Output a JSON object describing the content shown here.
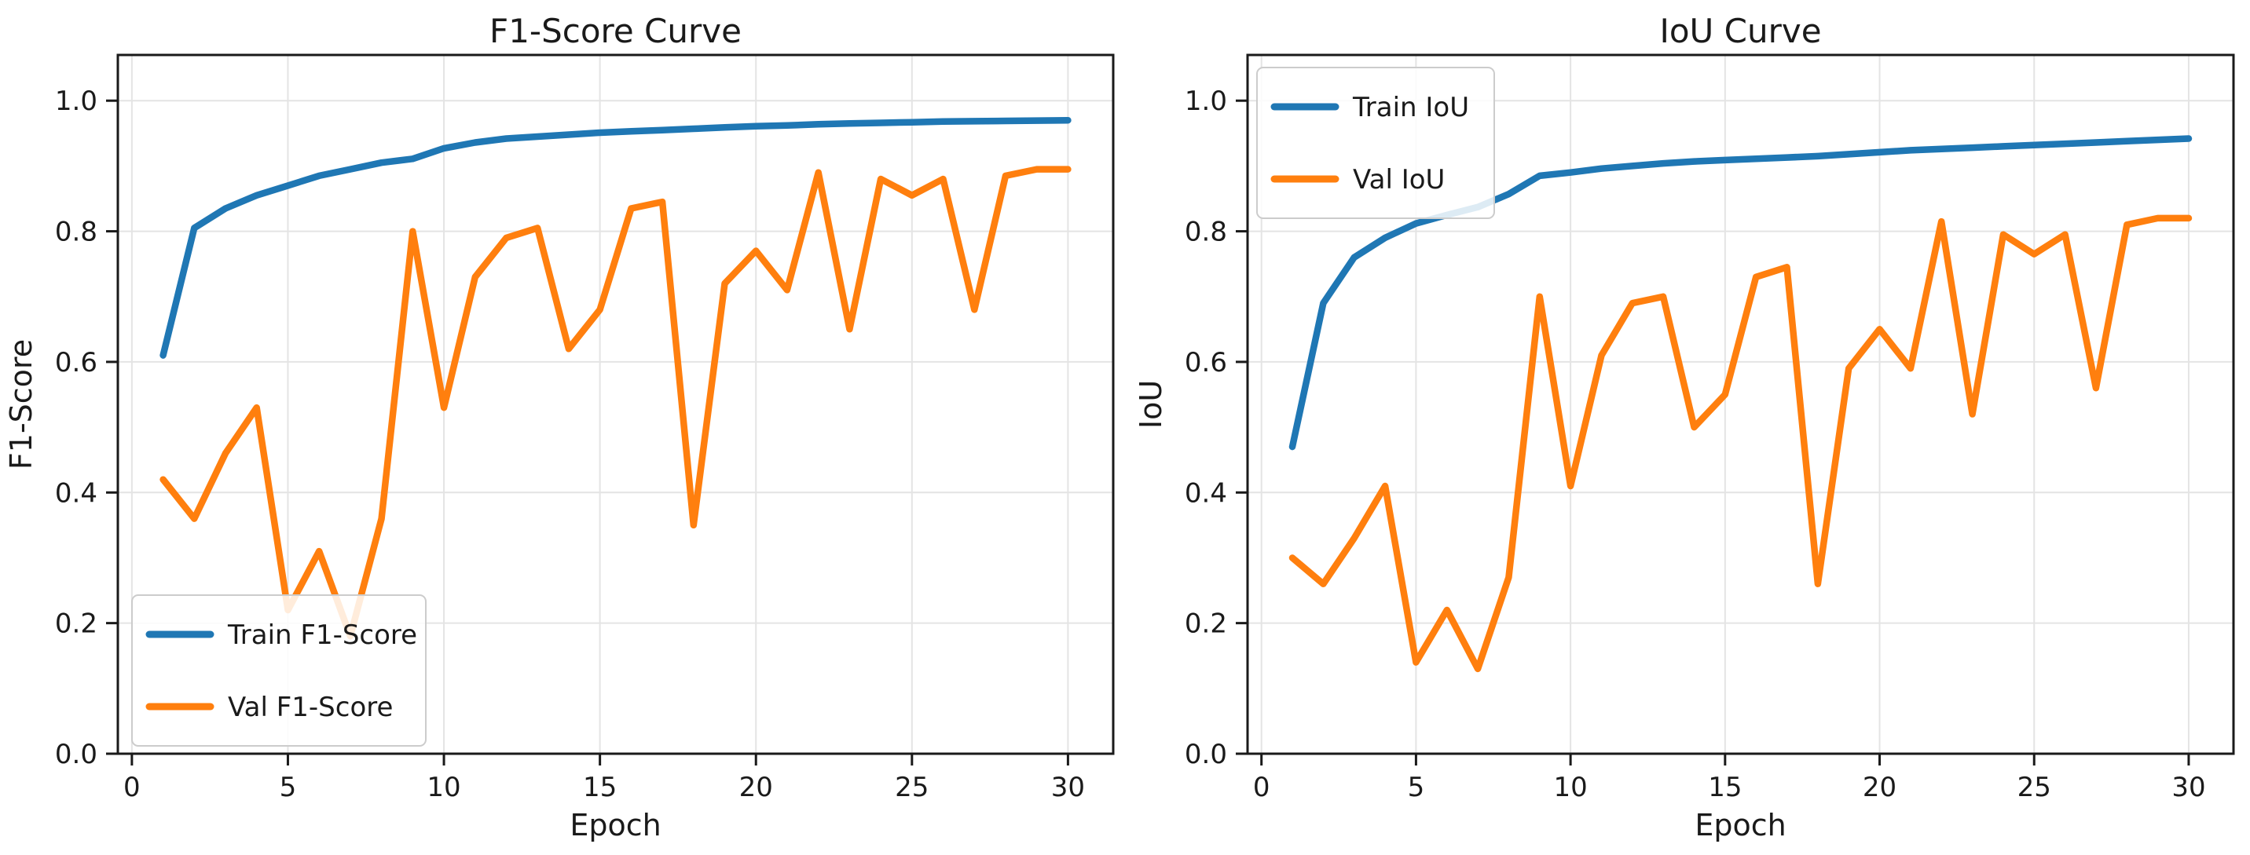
{
  "page": {
    "background": "#ffffff",
    "text_color": "#1a1a1a",
    "grid_color": "#e4e4e4",
    "spine_color": "#1a1a1a",
    "legend_border_color": "#cccccc"
  },
  "chart_data": [
    {
      "type": "line",
      "title": "F1-Score Curve",
      "xlabel": "Epoch",
      "ylabel": "F1-Score",
      "x": [
        1,
        2,
        3,
        4,
        5,
        6,
        7,
        8,
        9,
        10,
        11,
        12,
        13,
        14,
        15,
        16,
        17,
        18,
        19,
        20,
        21,
        22,
        23,
        24,
        25,
        26,
        27,
        28,
        29,
        30
      ],
      "series": [
        {
          "name": "Train F1-Score",
          "color": "#1f77b4",
          "values": [
            0.61,
            0.805,
            0.835,
            0.855,
            0.87,
            0.885,
            0.895,
            0.905,
            0.911,
            0.927,
            0.936,
            0.942,
            0.945,
            0.948,
            0.951,
            0.953,
            0.955,
            0.957,
            0.959,
            0.961,
            0.962,
            0.964,
            0.965,
            0.966,
            0.967,
            0.968,
            0.9685,
            0.969,
            0.9695,
            0.97
          ]
        },
        {
          "name": "Val F1-Score",
          "color": "#ff7f0e",
          "values": [
            0.42,
            0.36,
            0.46,
            0.53,
            0.22,
            0.31,
            0.18,
            0.36,
            0.8,
            0.53,
            0.73,
            0.79,
            0.805,
            0.62,
            0.68,
            0.835,
            0.845,
            0.35,
            0.72,
            0.77,
            0.71,
            0.89,
            0.65,
            0.88,
            0.855,
            0.88,
            0.68,
            0.885,
            0.895,
            0.895
          ]
        }
      ],
      "xticks": [
        0,
        5,
        10,
        15,
        20,
        25,
        30
      ],
      "yticks": [
        0.0,
        0.2,
        0.4,
        0.6,
        0.8,
        1.0
      ],
      "ytick_labels": [
        "0.0",
        "0.2",
        "0.4",
        "0.6",
        "0.8",
        "1.0"
      ],
      "xlim": [
        -0.45,
        31.45
      ],
      "ylim": [
        0,
        1.07
      ],
      "grid": true,
      "legend_position": "lower left"
    },
    {
      "type": "line",
      "title": "IoU Curve",
      "xlabel": "Epoch",
      "ylabel": "IoU",
      "x": [
        1,
        2,
        3,
        4,
        5,
        6,
        7,
        8,
        9,
        10,
        11,
        12,
        13,
        14,
        15,
        16,
        17,
        18,
        19,
        20,
        21,
        22,
        23,
        24,
        25,
        26,
        27,
        28,
        29,
        30
      ],
      "series": [
        {
          "name": "Train IoU",
          "color": "#1f77b4",
          "values": [
            0.47,
            0.69,
            0.76,
            0.79,
            0.812,
            0.825,
            0.837,
            0.857,
            0.885,
            0.89,
            0.896,
            0.9,
            0.904,
            0.907,
            0.909,
            0.911,
            0.913,
            0.915,
            0.918,
            0.921,
            0.924,
            0.926,
            0.928,
            0.93,
            0.932,
            0.934,
            0.936,
            0.938,
            0.94,
            0.942
          ]
        },
        {
          "name": "Val IoU",
          "color": "#ff7f0e",
          "values": [
            0.3,
            0.26,
            0.33,
            0.41,
            0.14,
            0.22,
            0.13,
            0.27,
            0.7,
            0.41,
            0.61,
            0.69,
            0.7,
            0.5,
            0.55,
            0.73,
            0.745,
            0.26,
            0.59,
            0.65,
            0.59,
            0.815,
            0.52,
            0.795,
            0.765,
            0.795,
            0.56,
            0.81,
            0.82,
            0.82
          ]
        }
      ],
      "xticks": [
        0,
        5,
        10,
        15,
        20,
        25,
        30
      ],
      "yticks": [
        0.0,
        0.2,
        0.4,
        0.6,
        0.8,
        1.0
      ],
      "ytick_labels": [
        "0.0",
        "0.2",
        "0.4",
        "0.6",
        "0.8",
        "1.0"
      ],
      "xlim": [
        -0.45,
        31.45
      ],
      "ylim": [
        0,
        1.07
      ],
      "grid": true,
      "legend_position": "upper left"
    }
  ]
}
